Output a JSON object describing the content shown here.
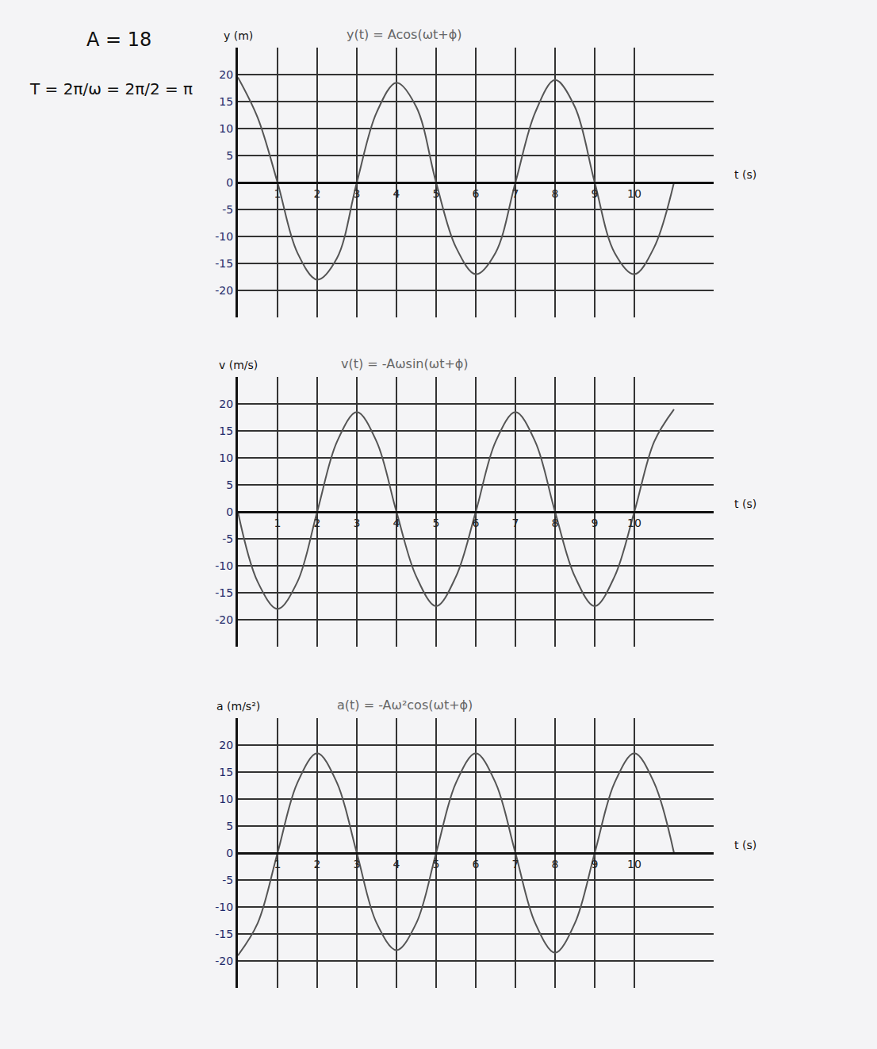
{
  "chart_data": [
    {
      "type": "line",
      "title": "y(t) = Acos(ωt+ϕ)",
      "x_label": "t (s)",
      "y_label": "y (m)",
      "annotations": [
        "A = 18",
        "T = 2π/ω = 2π/2 = π"
      ],
      "x": [
        0,
        0.5,
        1,
        1.5,
        2,
        2.5,
        3,
        3.5,
        4,
        4.5,
        5,
        5.5,
        6,
        6.5,
        7,
        7.5,
        8,
        8.5,
        9,
        9.5,
        10,
        10.5,
        11
      ],
      "values": [
        19.5,
        12,
        0,
        -13,
        -18,
        -14,
        0,
        13,
        18.5,
        14,
        0,
        -12,
        -17,
        -13,
        0,
        13,
        19,
        14,
        0,
        -13,
        -17,
        -12,
        0
      ],
      "color": "#555555",
      "xlim": [
        0,
        12
      ],
      "ylim": [
        -25,
        25
      ],
      "xticks": [
        1,
        2,
        3,
        4,
        5,
        6,
        7,
        8,
        9,
        10
      ],
      "yticks": [
        -20,
        -15,
        -10,
        -5,
        0,
        5,
        10,
        15,
        20
      ],
      "grid": true
    },
    {
      "type": "line",
      "title": "v(t) = -Aωsin(ωt+ϕ)",
      "x_label": "t (s)",
      "y_label": "v (m/s)",
      "x": [
        0,
        0.5,
        1,
        1.5,
        2,
        2.5,
        3,
        3.5,
        4,
        4.5,
        5,
        5.5,
        6,
        6.5,
        7,
        7.5,
        8,
        8.5,
        9,
        9.5,
        10,
        10.5,
        11
      ],
      "values": [
        0,
        -13,
        -18,
        -13,
        0,
        13,
        18.5,
        13,
        0,
        -12,
        -17.5,
        -12,
        0,
        13,
        18.5,
        13,
        0,
        -12,
        -17.5,
        -12,
        0,
        13,
        19
      ],
      "color": "#555555",
      "xlim": [
        0,
        12
      ],
      "ylim": [
        -25,
        25
      ],
      "xticks": [
        1,
        2,
        3,
        4,
        5,
        6,
        7,
        8,
        9,
        10
      ],
      "yticks": [
        -20,
        -15,
        -10,
        -5,
        0,
        5,
        10,
        15,
        20
      ],
      "grid": true
    },
    {
      "type": "line",
      "title": "a(t) = -Aω²cos(ωt+ϕ)",
      "x_label": "t (s)",
      "y_label": "a (m/s²)",
      "x": [
        0,
        0.5,
        1,
        1.5,
        2,
        2.5,
        3,
        3.5,
        4,
        4.5,
        5,
        5.5,
        6,
        6.5,
        7,
        7.5,
        8,
        8.5,
        9,
        9.5,
        10,
        10.5,
        11
      ],
      "values": [
        -19,
        -13,
        0,
        13,
        18.5,
        13,
        0,
        -13,
        -18,
        -13,
        0,
        13,
        18.5,
        13,
        0,
        -13,
        -18.5,
        -13,
        0,
        13,
        18.5,
        13,
        0
      ],
      "color": "#555555",
      "xlim": [
        0,
        12
      ],
      "ylim": [
        -25,
        25
      ],
      "xticks": [
        1,
        2,
        3,
        4,
        5,
        6,
        7,
        8,
        9,
        10
      ],
      "yticks": [
        -20,
        -15,
        -10,
        -5,
        0,
        5,
        10,
        15,
        20
      ],
      "grid": true
    }
  ]
}
